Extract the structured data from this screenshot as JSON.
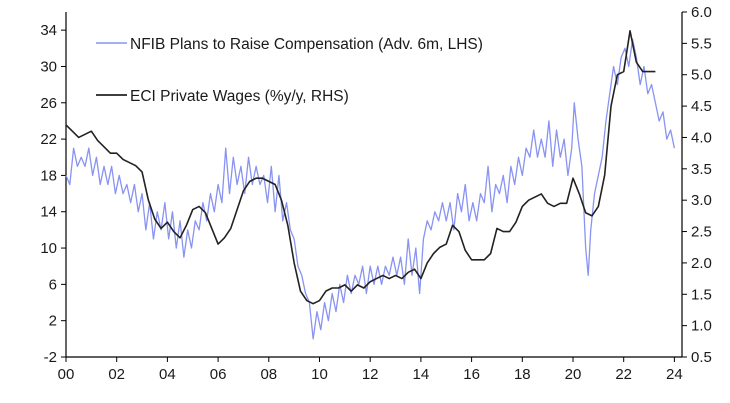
{
  "chart_data": {
    "type": "line",
    "title": "",
    "xlabel": "",
    "x_ticks": [
      "00",
      "02",
      "04",
      "06",
      "08",
      "10",
      "12",
      "14",
      "16",
      "18",
      "20",
      "22",
      "24"
    ],
    "xlim": [
      2000,
      2024.3
    ],
    "left_axis": {
      "ylim": [
        -2,
        36
      ],
      "ticks": [
        "-2",
        "2",
        "6",
        "10",
        "14",
        "18",
        "22",
        "26",
        "30",
        "34"
      ]
    },
    "right_axis": {
      "ylim": [
        0.5,
        6.0
      ],
      "ticks": [
        "0.5",
        "1.0",
        "1.5",
        "2.0",
        "2.5",
        "3.0",
        "3.5",
        "4.0",
        "4.5",
        "5.0",
        "5.5",
        "6.0"
      ]
    },
    "grid": false,
    "legend_position": "top-left",
    "series": [
      {
        "name": "NFIB Plans to Raise Compensation (Adv. 6m, LHS)",
        "axis": "left",
        "color": "#8893f2",
        "points": [
          [
            2000.0,
            18
          ],
          [
            2000.15,
            17
          ],
          [
            2000.3,
            21
          ],
          [
            2000.45,
            19
          ],
          [
            2000.6,
            20
          ],
          [
            2000.75,
            19
          ],
          [
            2000.9,
            21
          ],
          [
            2001.05,
            18
          ],
          [
            2001.2,
            20
          ],
          [
            2001.35,
            17
          ],
          [
            2001.5,
            19
          ],
          [
            2001.65,
            17
          ],
          [
            2001.8,
            19
          ],
          [
            2001.95,
            16
          ],
          [
            2002.1,
            18
          ],
          [
            2002.25,
            16
          ],
          [
            2002.4,
            17
          ],
          [
            2002.55,
            15
          ],
          [
            2002.7,
            17
          ],
          [
            2002.85,
            14
          ],
          [
            2003.0,
            16
          ],
          [
            2003.15,
            12
          ],
          [
            2003.3,
            15
          ],
          [
            2003.45,
            11
          ],
          [
            2003.6,
            14
          ],
          [
            2003.75,
            12
          ],
          [
            2003.9,
            15
          ],
          [
            2004.05,
            11
          ],
          [
            2004.2,
            14
          ],
          [
            2004.35,
            10
          ],
          [
            2004.5,
            13
          ],
          [
            2004.65,
            9
          ],
          [
            2004.8,
            12
          ],
          [
            2004.95,
            10
          ],
          [
            2005.1,
            13
          ],
          [
            2005.25,
            12
          ],
          [
            2005.4,
            15
          ],
          [
            2005.55,
            13
          ],
          [
            2005.7,
            16
          ],
          [
            2005.85,
            14
          ],
          [
            2006.0,
            17
          ],
          [
            2006.15,
            15
          ],
          [
            2006.3,
            21
          ],
          [
            2006.45,
            16
          ],
          [
            2006.6,
            20
          ],
          [
            2006.75,
            17
          ],
          [
            2006.9,
            19
          ],
          [
            2007.05,
            16
          ],
          [
            2007.2,
            20
          ],
          [
            2007.35,
            17
          ],
          [
            2007.5,
            19
          ],
          [
            2007.65,
            17
          ],
          [
            2007.8,
            18
          ],
          [
            2007.95,
            15
          ],
          [
            2008.1,
            19
          ],
          [
            2008.25,
            14
          ],
          [
            2008.4,
            18
          ],
          [
            2008.55,
            13
          ],
          [
            2008.7,
            15
          ],
          [
            2008.85,
            12
          ],
          [
            2009.0,
            11
          ],
          [
            2009.15,
            8
          ],
          [
            2009.3,
            7
          ],
          [
            2009.45,
            5
          ],
          [
            2009.6,
            4
          ],
          [
            2009.75,
            0
          ],
          [
            2009.9,
            3
          ],
          [
            2010.05,
            1
          ],
          [
            2010.2,
            4
          ],
          [
            2010.35,
            2
          ],
          [
            2010.5,
            5
          ],
          [
            2010.65,
            3
          ],
          [
            2010.8,
            6
          ],
          [
            2010.95,
            4
          ],
          [
            2011.1,
            7
          ],
          [
            2011.25,
            5
          ],
          [
            2011.4,
            7
          ],
          [
            2011.55,
            6
          ],
          [
            2011.7,
            8
          ],
          [
            2011.85,
            5
          ],
          [
            2012.0,
            8
          ],
          [
            2012.15,
            6
          ],
          [
            2012.3,
            8
          ],
          [
            2012.45,
            6
          ],
          [
            2012.6,
            8
          ],
          [
            2012.75,
            7
          ],
          [
            2012.9,
            9
          ],
          [
            2013.05,
            7
          ],
          [
            2013.2,
            9
          ],
          [
            2013.35,
            6
          ],
          [
            2013.5,
            11
          ],
          [
            2013.65,
            7
          ],
          [
            2013.8,
            10
          ],
          [
            2013.95,
            5
          ],
          [
            2014.1,
            11
          ],
          [
            2014.25,
            13
          ],
          [
            2014.4,
            12
          ],
          [
            2014.55,
            14
          ],
          [
            2014.7,
            13
          ],
          [
            2014.85,
            15
          ],
          [
            2015.0,
            13
          ],
          [
            2015.15,
            15
          ],
          [
            2015.3,
            12
          ],
          [
            2015.45,
            16
          ],
          [
            2015.6,
            14
          ],
          [
            2015.75,
            17
          ],
          [
            2015.9,
            13
          ],
          [
            2016.05,
            15
          ],
          [
            2016.2,
            13
          ],
          [
            2016.35,
            16
          ],
          [
            2016.5,
            15
          ],
          [
            2016.65,
            19
          ],
          [
            2016.8,
            14
          ],
          [
            2016.95,
            17
          ],
          [
            2017.1,
            16
          ],
          [
            2017.25,
            18
          ],
          [
            2017.4,
            15
          ],
          [
            2017.55,
            19
          ],
          [
            2017.7,
            17
          ],
          [
            2017.85,
            20
          ],
          [
            2018.0,
            18
          ],
          [
            2018.15,
            21
          ],
          [
            2018.3,
            20
          ],
          [
            2018.45,
            23
          ],
          [
            2018.6,
            20
          ],
          [
            2018.75,
            22
          ],
          [
            2018.9,
            20
          ],
          [
            2019.05,
            24
          ],
          [
            2019.2,
            19
          ],
          [
            2019.35,
            23
          ],
          [
            2019.5,
            20
          ],
          [
            2019.65,
            22
          ],
          [
            2019.8,
            18
          ],
          [
            2019.95,
            21
          ],
          [
            2020.05,
            26
          ],
          [
            2020.2,
            22
          ],
          [
            2020.35,
            19
          ],
          [
            2020.5,
            10
          ],
          [
            2020.6,
            7
          ],
          [
            2020.7,
            12
          ],
          [
            2020.85,
            16
          ],
          [
            2021.0,
            18
          ],
          [
            2021.15,
            20
          ],
          [
            2021.3,
            24
          ],
          [
            2021.45,
            27
          ],
          [
            2021.6,
            30
          ],
          [
            2021.75,
            28
          ],
          [
            2021.9,
            31
          ],
          [
            2022.05,
            32
          ],
          [
            2022.2,
            30
          ],
          [
            2022.35,
            33
          ],
          [
            2022.5,
            31
          ],
          [
            2022.65,
            28
          ],
          [
            2022.8,
            30
          ],
          [
            2022.95,
            27
          ],
          [
            2023.1,
            28
          ],
          [
            2023.25,
            26
          ],
          [
            2023.4,
            24
          ],
          [
            2023.55,
            25
          ],
          [
            2023.7,
            22
          ],
          [
            2023.85,
            23
          ],
          [
            2024.0,
            21
          ]
        ]
      },
      {
        "name": "ECI Private Wages (%y/y, RHS)",
        "axis": "right",
        "color": "#222222",
        "points": [
          [
            2000.0,
            4.2
          ],
          [
            2000.25,
            4.1
          ],
          [
            2000.5,
            4.0
          ],
          [
            2000.75,
            4.05
          ],
          [
            2001.0,
            4.1
          ],
          [
            2001.25,
            3.95
          ],
          [
            2001.5,
            3.85
          ],
          [
            2001.75,
            3.75
          ],
          [
            2002.0,
            3.75
          ],
          [
            2002.25,
            3.65
          ],
          [
            2002.5,
            3.6
          ],
          [
            2002.75,
            3.55
          ],
          [
            2003.0,
            3.45
          ],
          [
            2003.25,
            3.0
          ],
          [
            2003.5,
            2.7
          ],
          [
            2003.75,
            2.55
          ],
          [
            2004.0,
            2.65
          ],
          [
            2004.25,
            2.5
          ],
          [
            2004.5,
            2.4
          ],
          [
            2004.75,
            2.6
          ],
          [
            2005.0,
            2.85
          ],
          [
            2005.25,
            2.9
          ],
          [
            2005.5,
            2.8
          ],
          [
            2005.75,
            2.55
          ],
          [
            2006.0,
            2.3
          ],
          [
            2006.25,
            2.4
          ],
          [
            2006.5,
            2.55
          ],
          [
            2006.75,
            2.85
          ],
          [
            2007.0,
            3.15
          ],
          [
            2007.25,
            3.3
          ],
          [
            2007.5,
            3.35
          ],
          [
            2007.75,
            3.35
          ],
          [
            2008.0,
            3.3
          ],
          [
            2008.25,
            3.25
          ],
          [
            2008.5,
            3.0
          ],
          [
            2008.75,
            2.6
          ],
          [
            2009.0,
            2.0
          ],
          [
            2009.25,
            1.55
          ],
          [
            2009.5,
            1.4
          ],
          [
            2009.75,
            1.35
          ],
          [
            2010.0,
            1.4
          ],
          [
            2010.25,
            1.55
          ],
          [
            2010.5,
            1.6
          ],
          [
            2010.75,
            1.6
          ],
          [
            2011.0,
            1.65
          ],
          [
            2011.25,
            1.55
          ],
          [
            2011.5,
            1.65
          ],
          [
            2011.75,
            1.6
          ],
          [
            2012.0,
            1.7
          ],
          [
            2012.25,
            1.75
          ],
          [
            2012.5,
            1.8
          ],
          [
            2012.75,
            1.75
          ],
          [
            2013.0,
            1.8
          ],
          [
            2013.25,
            1.75
          ],
          [
            2013.5,
            1.85
          ],
          [
            2013.75,
            1.9
          ],
          [
            2014.0,
            1.75
          ],
          [
            2014.25,
            2.0
          ],
          [
            2014.5,
            2.15
          ],
          [
            2014.75,
            2.25
          ],
          [
            2015.0,
            2.3
          ],
          [
            2015.25,
            2.6
          ],
          [
            2015.5,
            2.5
          ],
          [
            2015.75,
            2.2
          ],
          [
            2016.0,
            2.05
          ],
          [
            2016.25,
            2.05
          ],
          [
            2016.5,
            2.05
          ],
          [
            2016.75,
            2.15
          ],
          [
            2017.0,
            2.55
          ],
          [
            2017.25,
            2.5
          ],
          [
            2017.5,
            2.5
          ],
          [
            2017.75,
            2.65
          ],
          [
            2018.0,
            2.9
          ],
          [
            2018.25,
            3.0
          ],
          [
            2018.5,
            3.05
          ],
          [
            2018.75,
            3.1
          ],
          [
            2019.0,
            2.95
          ],
          [
            2019.25,
            2.9
          ],
          [
            2019.5,
            2.95
          ],
          [
            2019.75,
            2.95
          ],
          [
            2020.0,
            3.35
          ],
          [
            2020.25,
            3.1
          ],
          [
            2020.5,
            2.8
          ],
          [
            2020.75,
            2.75
          ],
          [
            2021.0,
            2.9
          ],
          [
            2021.25,
            3.4
          ],
          [
            2021.5,
            4.5
          ],
          [
            2021.75,
            5.0
          ],
          [
            2022.0,
            5.05
          ],
          [
            2022.25,
            5.7
          ],
          [
            2022.5,
            5.2
          ],
          [
            2022.75,
            5.05
          ],
          [
            2023.0,
            5.05
          ],
          [
            2023.25,
            5.05
          ]
        ]
      }
    ]
  }
}
